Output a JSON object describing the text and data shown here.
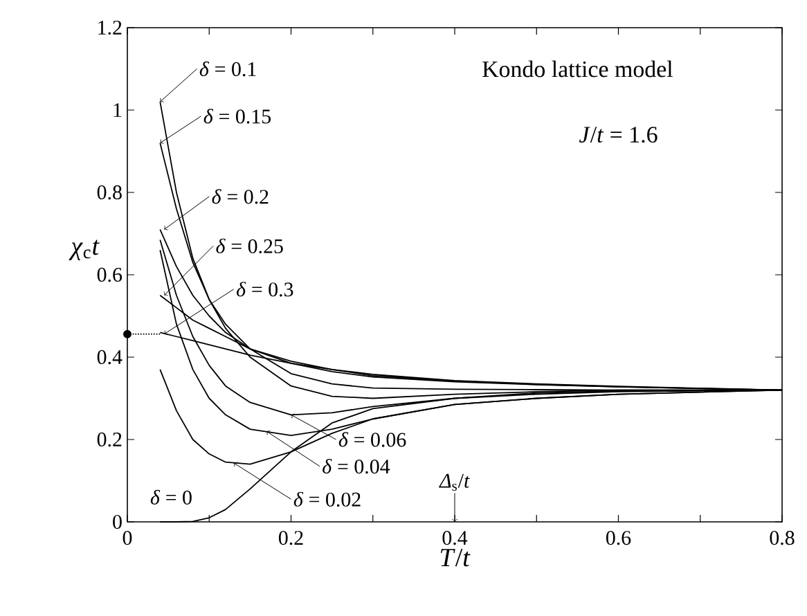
{
  "chart_data": {
    "type": "line",
    "xlabel": "*T*/*t*",
    "ylabel": "*χ*$_{c}$*t*",
    "xlim": [
      0,
      0.8
    ],
    "ylim": [
      0,
      1.2
    ],
    "xticks": [
      0,
      {
        "value": 0.1,
        "label": null
      },
      0.2,
      {
        "value": 0.3,
        "label": null
      },
      0.4,
      {
        "value": 0.5,
        "label": null
      },
      0.6,
      {
        "value": 0.7,
        "label": null
      },
      0.8
    ],
    "yticks": [
      0,
      0.2,
      0.4,
      0.6,
      0.8,
      1,
      1.2
    ],
    "grid": false,
    "line_style": "solid",
    "series": [
      {
        "color": "#000000",
        "x": [
          0.04,
          0.06,
          0.08,
          0.1,
          0.12,
          0.15,
          0.2,
          0.25,
          0.3,
          0.4,
          0.5,
          0.6,
          0.8
        ],
        "values": [
          1.02,
          0.8,
          0.64,
          0.54,
          0.47,
          0.4,
          0.33,
          0.305,
          0.3,
          0.31,
          0.316,
          0.32,
          0.32
        ]
      },
      {
        "color": "#000000",
        "x": [
          0.04,
          0.06,
          0.08,
          0.1,
          0.12,
          0.15,
          0.2,
          0.25,
          0.3,
          0.4,
          0.5,
          0.6,
          0.8
        ],
        "values": [
          0.92,
          0.76,
          0.63,
          0.54,
          0.48,
          0.42,
          0.36,
          0.335,
          0.325,
          0.322,
          0.321,
          0.32,
          0.32
        ]
      },
      {
        "color": "#000000",
        "x": [
          0.04,
          0.06,
          0.08,
          0.1,
          0.12,
          0.15,
          0.2,
          0.25,
          0.3,
          0.4,
          0.5,
          0.6,
          0.8
        ],
        "values": [
          0.71,
          0.62,
          0.55,
          0.5,
          0.46,
          0.42,
          0.385,
          0.365,
          0.352,
          0.34,
          0.333,
          0.328,
          0.32
        ]
      },
      {
        "color": "#000000",
        "x": [
          0.04,
          0.06,
          0.08,
          0.1,
          0.12,
          0.15,
          0.2,
          0.25,
          0.3,
          0.4,
          0.5,
          0.6,
          0.8
        ],
        "values": [
          0.55,
          0.52,
          0.49,
          0.47,
          0.45,
          0.42,
          0.39,
          0.37,
          0.355,
          0.342,
          0.334,
          0.328,
          0.32
        ]
      },
      {
        "color": "#000000",
        "x": [
          0.04,
          0.06,
          0.08,
          0.1,
          0.12,
          0.15,
          0.2,
          0.25,
          0.3,
          0.4,
          0.5,
          0.6,
          0.8
        ],
        "values": [
          0.46,
          0.45,
          0.44,
          0.43,
          0.42,
          0.405,
          0.385,
          0.37,
          0.358,
          0.343,
          0.335,
          0.329,
          0.32
        ]
      },
      {
        "color": "#000000",
        "x": [
          0.04,
          0.06,
          0.08,
          0.1,
          0.12,
          0.15,
          0.2,
          0.25,
          0.3,
          0.4,
          0.5,
          0.6,
          0.8
        ],
        "values": [
          0.685,
          0.55,
          0.45,
          0.38,
          0.33,
          0.29,
          0.26,
          0.265,
          0.28,
          0.3,
          0.31,
          0.316,
          0.32
        ]
      },
      {
        "color": "#000000",
        "x": [
          0.04,
          0.06,
          0.08,
          0.1,
          0.12,
          0.15,
          0.2,
          0.25,
          0.3,
          0.4,
          0.5,
          0.6,
          0.8
        ],
        "values": [
          0.66,
          0.48,
          0.37,
          0.3,
          0.26,
          0.225,
          0.21,
          0.225,
          0.25,
          0.285,
          0.3,
          0.31,
          0.32
        ]
      },
      {
        "color": "#000000",
        "x": [
          0.04,
          0.06,
          0.08,
          0.1,
          0.12,
          0.15,
          0.2,
          0.25,
          0.3,
          0.4,
          0.5,
          0.6,
          0.8
        ],
        "values": [
          0.37,
          0.27,
          0.2,
          0.165,
          0.145,
          0.14,
          0.17,
          0.215,
          0.25,
          0.285,
          0.3,
          0.31,
          0.32
        ]
      },
      {
        "color": "#000000",
        "x": [
          0.04,
          0.06,
          0.08,
          0.1,
          0.12,
          0.15,
          0.2,
          0.25,
          0.3,
          0.4,
          0.5,
          0.6,
          0.8
        ],
        "values": [
          0,
          0,
          0.001,
          0.01,
          0.03,
          0.08,
          0.17,
          0.24,
          0.275,
          0.3,
          0.313,
          0.318,
          0.32
        ]
      },
      {
        "color": "#000000",
        "x": [
          0,
          0.04
        ],
        "values": [
          0.456,
          0.456
        ],
        "line_style": "dotted"
      },
      {
        "color": "#000000",
        "type": "scatter",
        "x": [
          0
        ],
        "values": [
          0.456
        ]
      }
    ],
    "annotations": [
      {
        "text": "*δ* = 0.1",
        "x": 0.04,
        "y": 1.02
      },
      {
        "text": "*δ* = 0.15",
        "x": 0.04,
        "y": 0.92
      },
      {
        "text": "*δ* = 0.2",
        "x": 0.045,
        "y": 0.71
      },
      {
        "text": "*δ* = 0.25",
        "x": 0.045,
        "y": 0.55
      },
      {
        "text": "*δ* = 0.3",
        "x": 0.045,
        "y": 0.456
      },
      {
        "text": "*δ* = 0.06",
        "x": 0.2,
        "y": 0.26
      },
      {
        "text": "*δ* = 0.04",
        "x": 0.17,
        "y": 0.22
      },
      {
        "text": "*δ* = 0.02",
        "x": 0.13,
        "y": 0.143
      },
      "*δ* = 0",
      {
        "text": "*Δ*$_{s}$/*t*",
        "x": 0.4,
        "y": 0
      },
      "Kondo lattice model",
      "*J*/*t* = 1.6"
    ]
  }
}
